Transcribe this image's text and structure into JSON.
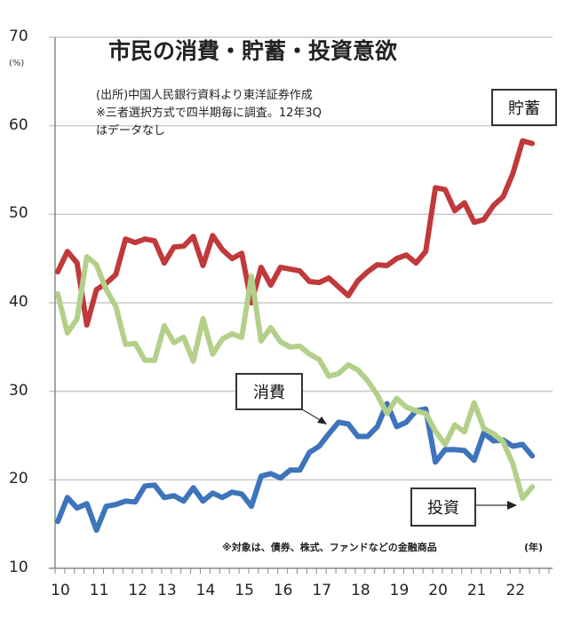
{
  "chart_data": {
    "type": "line",
    "title": "市民の消費・貯蓄・投資意欲",
    "notes": [
      "(出所)中国人民銀行資料より東洋証券作成",
      "※三者選択方式で四半期毎に調査。12年3Q",
      "はデータなし"
    ],
    "footnote": "※対象は、債券、株式、ファンドなどの金融商品",
    "ylabel": "(%)",
    "xlabel": "(年)",
    "ylim": [
      10,
      70
    ],
    "yticks": [
      "10",
      "20",
      "30",
      "40",
      "50",
      "60",
      "70"
    ],
    "ytick_values": [
      10,
      20,
      30,
      40,
      50,
      60,
      70
    ],
    "xtick_labels": [
      "10",
      "11",
      "12",
      "13",
      "14",
      "15",
      "16",
      "17",
      "18",
      "19",
      "20",
      "21",
      "22"
    ],
    "xtick_quarter_index": [
      0,
      4,
      8,
      11,
      15,
      19,
      23,
      27,
      31,
      35,
      39,
      43,
      47
    ],
    "quarter_count": 50,
    "grid": true,
    "series": [
      {
        "name": "貯蓄",
        "color": "#c0393b",
        "values": [
          43.5,
          45.8,
          44.5,
          37.5,
          41.5,
          42.2,
          43.2,
          47.2,
          46.8,
          47.2,
          47.0,
          44.5,
          46.3,
          46.4,
          47.5,
          44.2,
          47.6,
          46.0,
          45.0,
          45.6,
          40.0,
          44.0,
          42.0,
          44.0,
          43.8,
          43.6,
          42.4,
          42.3,
          42.8,
          41.8,
          40.8,
          42.5,
          43.5,
          44.3,
          44.2,
          45.0,
          45.4,
          44.5,
          45.8,
          53.0,
          52.8,
          50.4,
          51.3,
          49.1,
          49.4,
          51.0,
          52.0,
          54.6,
          58.3,
          58.0
        ]
      },
      {
        "name": "消費",
        "color": "#3d74bb",
        "values": [
          15.3,
          18.0,
          16.8,
          17.3,
          14.3,
          17.0,
          17.2,
          17.6,
          17.5,
          19.3,
          19.4,
          18.0,
          18.2,
          17.6,
          19.1,
          17.6,
          18.5,
          18.0,
          18.6,
          18.4,
          17.0,
          20.4,
          20.7,
          20.2,
          21.1,
          21.1,
          23.1,
          23.8,
          25.2,
          26.5,
          26.3,
          24.9,
          24.9,
          26.0,
          28.6,
          26.0,
          26.5,
          27.8,
          28.0,
          22.0,
          23.4,
          23.4,
          23.3,
          22.2,
          25.3,
          24.4,
          24.5,
          23.8,
          24.0,
          22.7
        ]
      },
      {
        "name": "投資",
        "color": "#b3d08a",
        "values": [
          41.0,
          36.6,
          38.2,
          45.2,
          44.3,
          41.5,
          39.6,
          35.3,
          35.4,
          33.5,
          33.5,
          37.4,
          35.5,
          36.1,
          33.4,
          38.2,
          34.2,
          35.9,
          36.5,
          36.1,
          43.0,
          35.7,
          37.2,
          35.6,
          35.0,
          35.1,
          34.2,
          33.6,
          31.7,
          32.0,
          33.0,
          32.4,
          31.2,
          29.6,
          27.5,
          29.2,
          28.2,
          27.8,
          27.5,
          25.5,
          24.0,
          26.2,
          25.4,
          28.7,
          25.8,
          25.2,
          24.3,
          21.8,
          17.9,
          19.2
        ]
      }
    ],
    "labels": {
      "savings": "貯蓄",
      "consumption": "消費",
      "investment": "投資"
    },
    "gap_after_index": 10
  }
}
